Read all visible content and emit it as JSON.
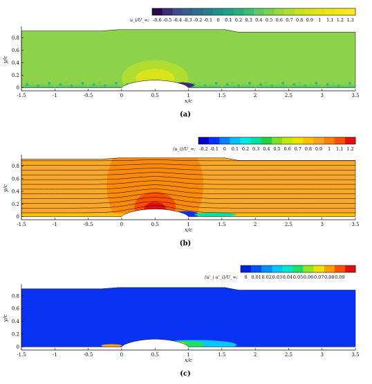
{
  "chart_data": [
    {
      "type": "heatmap",
      "panel_label": "(a)",
      "xlabel": "x/c",
      "ylabel": "y/c",
      "xlim": [
        -1.5,
        3.5
      ],
      "ylim": [
        -0.05,
        0.95
      ],
      "xticks": [
        "-1.5",
        "-1",
        "-0.5",
        "0",
        "0.5",
        "1",
        "1.5",
        "2",
        "2.5",
        "3",
        "3.5"
      ],
      "xtick_values": [
        -1.5,
        -1,
        -0.5,
        0,
        0.5,
        1,
        1.5,
        2,
        2.5,
        3,
        3.5
      ],
      "yticks": [
        "0",
        "0.2",
        "0.4",
        "0.6",
        "0.8"
      ],
      "ytick_values": [
        0,
        0.2,
        0.4,
        0.6,
        0.8
      ],
      "colorbar_label": "u_i/U_∞:",
      "colorbar_ticks": [
        "-0.6",
        "-0.5",
        "-0.4",
        "-0.3",
        "-0.2",
        "-0.1",
        "0",
        "0.1",
        "0.2",
        "0.3",
        "0.4",
        "0.5",
        "0.6",
        "0.7",
        "0.8",
        "0.9",
        "1",
        "1.1",
        "1.2",
        "1.3"
      ],
      "colormap": [
        "#2b0a4a",
        "#3d2a7a",
        "#3c4e8f",
        "#355f8c",
        "#2e6f8e",
        "#277f8e",
        "#21918c",
        "#1fa088",
        "#28ae80",
        "#3fbc73",
        "#5ec962",
        "#7ad151",
        "#95d840",
        "#b0dd2f",
        "#c8e020",
        "#d9e319",
        "#e4e419",
        "#eee51b",
        "#f6e620",
        "#fde725"
      ],
      "background_color": "#8cd24a",
      "streamlines": false
    },
    {
      "type": "heatmap",
      "panel_label": "(b)",
      "xlabel": "x/c",
      "ylabel": "y/c",
      "xlim": [
        -1.5,
        3.5
      ],
      "ylim": [
        -0.05,
        0.95
      ],
      "xticks": [
        "-1.5",
        "-1",
        "-0.5",
        "0",
        "0.5",
        "1",
        "1.5",
        "2",
        "2.5",
        "3",
        "3.5"
      ],
      "xtick_values": [
        -1.5,
        -1,
        -0.5,
        0,
        0.5,
        1,
        1.5,
        2,
        2.5,
        3,
        3.5
      ],
      "yticks": [
        "0",
        "0.2",
        "0.4",
        "0.6",
        "0.8"
      ],
      "ytick_values": [
        0,
        0.2,
        0.4,
        0.6,
        0.8
      ],
      "colorbar_label": "⟨u_i⟩/U_∞:",
      "colorbar_ticks": [
        "-0.2",
        "-0.1",
        "0",
        "0.1",
        "0.2",
        "0.3",
        "0.4",
        "0.5",
        "0.6",
        "0.7",
        "0.8",
        "0.9",
        "1",
        "1.1",
        "1.2"
      ],
      "colormap": [
        "#0000c8",
        "#0030ff",
        "#0080ff",
        "#00c0ff",
        "#00e8e0",
        "#00e0a0",
        "#20d040",
        "#80e020",
        "#c0e800",
        "#f0e000",
        "#ffc000",
        "#ffa020",
        "#ff8000",
        "#ff5000",
        "#e01010"
      ],
      "background_color": "#f9a829",
      "streamlines": true
    },
    {
      "type": "heatmap",
      "panel_label": "(c)",
      "xlabel": "x/c",
      "ylabel": "y/c",
      "xlim": [
        -1.5,
        3.5
      ],
      "ylim": [
        -0.05,
        0.95
      ],
      "xticks": [
        "-1.5",
        "-1",
        "-0.5",
        "0",
        "0.5",
        "1",
        "1.5",
        "2",
        "2.5",
        "3",
        "3.5"
      ],
      "xtick_values": [
        -1.5,
        -1,
        -0.5,
        0,
        0.5,
        1,
        1.5,
        2,
        2.5,
        3,
        3.5
      ],
      "yticks": [
        "0",
        "0.2",
        "0.4",
        "0.6",
        "0.8"
      ],
      "ytick_values": [
        0,
        0.2,
        0.4,
        0.6,
        0.8
      ],
      "colorbar_label": "⟨u'_i u'_i⟩/U_∞:",
      "colorbar_ticks": [
        "0",
        "0.01",
        "0.02",
        "0.03",
        "0.04",
        "0.05",
        "0.06",
        "0.07",
        "0.08",
        "0.09"
      ],
      "colormap": [
        "#0020e0",
        "#0050ff",
        "#0090ff",
        "#00c8ff",
        "#00e8c8",
        "#20e060",
        "#90e820",
        "#f0e000",
        "#ffa000",
        "#ff5000",
        "#e01010"
      ],
      "background_color": "#0a32f5",
      "streamlines": false
    }
  ]
}
